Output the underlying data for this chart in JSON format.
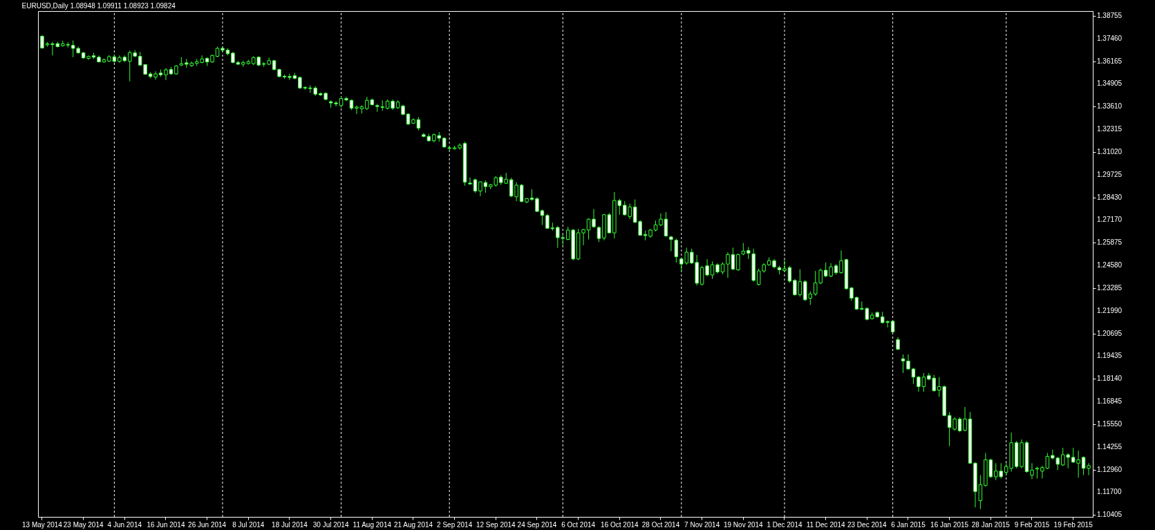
{
  "chart_data": {
    "type": "candlestick",
    "title": "EURUSD,Daily  1.08948 1.09911 1.08923 1.09824",
    "color": "#33ff33",
    "categories": [
      "13 May 2014",
      null,
      null,
      null,
      null,
      null,
      null,
      null,
      "23 May 2014",
      null,
      null,
      null,
      null,
      null,
      null,
      null,
      "4 Jun 2014",
      null,
      null,
      null,
      null,
      null,
      null,
      null,
      "16 Jun 2014",
      null,
      null,
      null,
      null,
      null,
      null,
      null,
      "26 Jun 2014",
      null,
      null,
      null,
      null,
      null,
      null,
      null,
      "8 Jul 2014",
      null,
      null,
      null,
      null,
      null,
      null,
      null,
      "18 Jul 2014",
      null,
      null,
      null,
      null,
      null,
      null,
      null,
      "30 Jul 2014",
      null,
      null,
      null,
      null,
      null,
      null,
      null,
      "11 Aug 2014",
      null,
      null,
      null,
      null,
      null,
      null,
      null,
      "21 Aug 2014",
      null,
      null,
      null,
      null,
      null,
      null,
      null,
      "2 Sep 2014",
      null,
      null,
      null,
      null,
      null,
      null,
      null,
      "12 Sep 2014",
      null,
      null,
      null,
      null,
      null,
      null,
      null,
      "24 Sep 2014",
      null,
      null,
      null,
      null,
      null,
      null,
      null,
      "6 Oct 2014",
      null,
      null,
      null,
      null,
      null,
      null,
      null,
      "16 Oct 2014",
      null,
      null,
      null,
      null,
      null,
      null,
      null,
      "28 Oct 2014",
      null,
      null,
      null,
      null,
      null,
      null,
      null,
      "7 Nov 2014",
      null,
      null,
      null,
      null,
      null,
      null,
      null,
      "19 Nov 2014",
      null,
      null,
      null,
      null,
      null,
      null,
      null,
      "1 Dec 2014",
      null,
      null,
      null,
      null,
      null,
      null,
      null,
      "11 Dec 2014",
      null,
      null,
      null,
      null,
      null,
      null,
      null,
      "23 Dec 2014",
      null,
      null,
      null,
      null,
      null,
      null,
      null,
      "6 Jan 2015",
      null,
      null,
      null,
      null,
      null,
      null,
      null,
      "16 Jan 2015",
      null,
      null,
      null,
      null,
      null,
      null,
      null,
      "28 Jan 2015",
      null,
      null,
      null,
      null,
      null,
      null,
      null,
      "9 Feb 2015",
      null,
      null,
      null,
      null,
      null,
      null,
      null,
      "19 Feb 2015",
      null,
      null,
      null
    ],
    "ohlc": [
      [
        1.3759,
        1.3765,
        1.3688,
        1.3692
      ],
      [
        1.371,
        1.3726,
        1.37,
        1.3716
      ],
      [
        1.3716,
        1.3726,
        1.365,
        1.3712
      ],
      [
        1.3717,
        1.3727,
        1.3695,
        1.37
      ],
      [
        1.3705,
        1.3734,
        1.37,
        1.3716
      ],
      [
        1.3712,
        1.3725,
        1.3695,
        1.3709
      ],
      [
        1.3707,
        1.3735,
        1.364,
        1.369
      ],
      [
        1.369,
        1.37,
        1.366,
        1.3665
      ],
      [
        1.3665,
        1.367,
        1.363,
        1.3636
      ],
      [
        1.3633,
        1.365,
        1.3625,
        1.3644
      ],
      [
        1.3648,
        1.3665,
        1.363,
        1.364
      ],
      [
        1.364,
        1.365,
        1.361,
        1.3613
      ],
      [
        1.3613,
        1.3633,
        1.3608,
        1.3625
      ],
      [
        1.3618,
        1.3652,
        1.3613,
        1.3643
      ],
      [
        1.3642,
        1.3655,
        1.361,
        1.3616
      ],
      [
        1.3616,
        1.365,
        1.3608,
        1.3638
      ],
      [
        1.364,
        1.365,
        1.3612,
        1.362
      ],
      [
        1.3617,
        1.3677,
        1.3503,
        1.3666
      ],
      [
        1.3665,
        1.368,
        1.364,
        1.3646
      ],
      [
        1.3645,
        1.367,
        1.3592,
        1.3595
      ],
      [
        1.3598,
        1.36,
        1.354,
        1.3543
      ],
      [
        1.3545,
        1.3555,
        1.352,
        1.353
      ],
      [
        1.3527,
        1.356,
        1.3512,
        1.3545
      ],
      [
        1.355,
        1.357,
        1.353,
        1.354
      ],
      [
        1.354,
        1.3578,
        1.351,
        1.3568
      ],
      [
        1.357,
        1.3585,
        1.354,
        1.3545
      ],
      [
        1.3545,
        1.3595,
        1.354,
        1.359
      ],
      [
        1.3595,
        1.364,
        1.359,
        1.3603
      ],
      [
        1.3608,
        1.363,
        1.358,
        1.36
      ],
      [
        1.3592,
        1.3615,
        1.3585,
        1.3606
      ],
      [
        1.3605,
        1.363,
        1.359,
        1.3615
      ],
      [
        1.361,
        1.365,
        1.3605,
        1.363
      ],
      [
        1.3633,
        1.364,
        1.359,
        1.3613
      ],
      [
        1.3613,
        1.3655,
        1.3608,
        1.365
      ],
      [
        1.3645,
        1.37,
        1.364,
        1.369
      ],
      [
        1.369,
        1.37,
        1.367,
        1.368
      ],
      [
        1.368,
        1.369,
        1.365,
        1.366
      ],
      [
        1.3663,
        1.367,
        1.3605,
        1.361
      ],
      [
        1.361,
        1.362,
        1.3595,
        1.36
      ],
      [
        1.36,
        1.362,
        1.3585,
        1.361
      ],
      [
        1.3604,
        1.3625,
        1.3598,
        1.3615
      ],
      [
        1.3603,
        1.3645,
        1.3595,
        1.3638
      ],
      [
        1.364,
        1.3645,
        1.359,
        1.3595
      ],
      [
        1.3603,
        1.3612,
        1.3585,
        1.36
      ],
      [
        1.36,
        1.3638,
        1.3595,
        1.362
      ],
      [
        1.362,
        1.3625,
        1.3565,
        1.357
      ],
      [
        1.357,
        1.3575,
        1.3525,
        1.353
      ],
      [
        1.3532,
        1.354,
        1.3518,
        1.3528
      ],
      [
        1.353,
        1.3545,
        1.351,
        1.3525
      ],
      [
        1.3535,
        1.355,
        1.3515,
        1.352
      ],
      [
        1.3525,
        1.353,
        1.346,
        1.3465
      ],
      [
        1.3468,
        1.3475,
        1.3455,
        1.3464
      ],
      [
        1.3465,
        1.348,
        1.3438,
        1.3462
      ],
      [
        1.3465,
        1.3475,
        1.342,
        1.343
      ],
      [
        1.3433,
        1.344,
        1.342,
        1.3426
      ],
      [
        1.3435,
        1.344,
        1.3395,
        1.34
      ],
      [
        1.3387,
        1.3395,
        1.3353,
        1.338
      ],
      [
        1.338,
        1.339,
        1.336,
        1.3375
      ],
      [
        1.3365,
        1.3415,
        1.3353,
        1.3405
      ],
      [
        1.3405,
        1.3415,
        1.339,
        1.3397
      ],
      [
        1.3395,
        1.34,
        1.334,
        1.335
      ],
      [
        1.335,
        1.3365,
        1.3317,
        1.3357
      ],
      [
        1.3347,
        1.3367,
        1.332,
        1.3358
      ],
      [
        1.3348,
        1.3415,
        1.334,
        1.3395
      ],
      [
        1.3398,
        1.3405,
        1.3365,
        1.337
      ],
      [
        1.3365,
        1.3375,
        1.333,
        1.336
      ],
      [
        1.3358,
        1.3395,
        1.3335,
        1.3355
      ],
      [
        1.335,
        1.34,
        1.3343,
        1.339
      ],
      [
        1.339,
        1.34,
        1.334,
        1.335
      ],
      [
        1.3353,
        1.3395,
        1.3345,
        1.3385
      ],
      [
        1.3363,
        1.337,
        1.331,
        1.3315
      ],
      [
        1.3317,
        1.332,
        1.3255,
        1.326
      ],
      [
        1.3265,
        1.3293,
        1.326,
        1.3285
      ],
      [
        1.3285,
        1.33,
        1.3225,
        1.3237
      ],
      [
        1.32,
        1.321,
        1.3185,
        1.319
      ],
      [
        1.319,
        1.3205,
        1.316,
        1.3165
      ],
      [
        1.3165,
        1.3207,
        1.3157,
        1.32
      ],
      [
        1.3195,
        1.3215,
        1.316,
        1.318
      ],
      [
        1.318,
        1.3185,
        1.3125,
        1.313
      ],
      [
        1.3125,
        1.3135,
        1.311,
        1.3122
      ],
      [
        1.312,
        1.3137,
        1.3115,
        1.3125
      ],
      [
        1.3125,
        1.315,
        1.3115,
        1.314
      ],
      [
        1.315,
        1.316,
        1.291,
        1.293
      ],
      [
        1.2925,
        1.2957,
        1.2915,
        1.292
      ],
      [
        1.2944,
        1.295,
        1.287,
        1.288
      ],
      [
        1.288,
        1.2935,
        1.2851,
        1.2932
      ],
      [
        1.2928,
        1.294,
        1.287,
        1.2905
      ],
      [
        1.2905,
        1.292,
        1.289,
        1.2915
      ],
      [
        1.2913,
        1.2965,
        1.2905,
        1.2955
      ],
      [
        1.2959,
        1.297,
        1.2915,
        1.2928
      ],
      [
        1.2924,
        1.2983,
        1.292,
        1.2947
      ],
      [
        1.2944,
        1.2955,
        1.2845,
        1.2851
      ],
      [
        1.2847,
        1.293,
        1.2822,
        1.2913
      ],
      [
        1.2913,
        1.292,
        1.2815,
        1.282
      ],
      [
        1.2818,
        1.284,
        1.281,
        1.2837
      ],
      [
        1.284,
        1.289,
        1.2825,
        1.2832
      ],
      [
        1.2836,
        1.2845,
        1.276,
        1.2764
      ],
      [
        1.2768,
        1.2775,
        1.2687,
        1.2741
      ],
      [
        1.2741,
        1.275,
        1.2665,
        1.2668
      ],
      [
        1.267,
        1.27,
        1.2655,
        1.2666
      ],
      [
        1.2673,
        1.268,
        1.2557,
        1.2615
      ],
      [
        1.2615,
        1.2635,
        1.2573,
        1.2611
      ],
      [
        1.2605,
        1.2677,
        1.26,
        1.2658
      ],
      [
        1.2658,
        1.2665,
        1.2485,
        1.2494
      ],
      [
        1.2494,
        1.2665,
        1.2488,
        1.2642
      ],
      [
        1.2642,
        1.2665,
        1.2572,
        1.2661
      ],
      [
        1.2658,
        1.2725,
        1.2605,
        1.272
      ],
      [
        1.272,
        1.2778,
        1.267,
        1.2677
      ],
      [
        1.2673,
        1.268,
        1.259,
        1.261
      ],
      [
        1.2613,
        1.275,
        1.26,
        1.2745
      ],
      [
        1.2745,
        1.2755,
        1.264,
        1.2642
      ],
      [
        1.2642,
        1.2874,
        1.2611,
        1.2826
      ],
      [
        1.2826,
        1.2835,
        1.2745,
        1.2797
      ],
      [
        1.2799,
        1.2822,
        1.274,
        1.2745
      ],
      [
        1.2735,
        1.2808,
        1.272,
        1.2789
      ],
      [
        1.2789,
        1.2832,
        1.27,
        1.2702
      ],
      [
        1.2706,
        1.2715,
        1.2625,
        1.2629
      ],
      [
        1.2633,
        1.2655,
        1.26,
        1.2627
      ],
      [
        1.2623,
        1.2665,
        1.2615,
        1.2658
      ],
      [
        1.2658,
        1.2712,
        1.265,
        1.2687
      ],
      [
        1.2687,
        1.2753,
        1.268,
        1.272
      ],
      [
        1.272,
        1.276,
        1.262,
        1.2625
      ],
      [
        1.2619,
        1.2625,
        1.2538,
        1.2604
      ],
      [
        1.26,
        1.261,
        1.2474,
        1.2507
      ],
      [
        1.2494,
        1.2503,
        1.2426,
        1.2465
      ],
      [
        1.2471,
        1.2558,
        1.2461,
        1.2532
      ],
      [
        1.2532,
        1.2552,
        1.2465,
        1.2471
      ],
      [
        1.2474,
        1.2517,
        1.2343,
        1.2356
      ],
      [
        1.2351,
        1.2455,
        1.2343,
        1.2445
      ],
      [
        1.2455,
        1.2493,
        1.2395,
        1.2403
      ],
      [
        1.2403,
        1.248,
        1.2381,
        1.2461
      ],
      [
        1.2461,
        1.247,
        1.241,
        1.242
      ],
      [
        1.242,
        1.2475,
        1.2407,
        1.2465
      ],
      [
        1.2465,
        1.2532,
        1.2387,
        1.2519
      ],
      [
        1.2519,
        1.2558,
        1.243,
        1.2436
      ],
      [
        1.2432,
        1.2525,
        1.2426,
        1.2519
      ],
      [
        1.2523,
        1.2585,
        1.2515,
        1.2538
      ],
      [
        1.2542,
        1.2561,
        1.2494,
        1.2527
      ],
      [
        1.2523,
        1.2552,
        1.2365,
        1.2372
      ],
      [
        1.2349,
        1.244,
        1.2343,
        1.2426
      ],
      [
        1.2426,
        1.247,
        1.2416,
        1.2461
      ],
      [
        1.2461,
        1.2503,
        1.2455,
        1.2484
      ],
      [
        1.2484,
        1.2494,
        1.244,
        1.2449
      ],
      [
        1.2445,
        1.2455,
        1.2407,
        1.2432
      ],
      [
        1.2428,
        1.2488,
        1.242,
        1.2438
      ],
      [
        1.2445,
        1.2455,
        1.236,
        1.2368
      ],
      [
        1.2372,
        1.238,
        1.2285,
        1.2291
      ],
      [
        1.2291,
        1.2436,
        1.228,
        1.2365
      ],
      [
        1.2365,
        1.2375,
        1.2255,
        1.2262
      ],
      [
        1.2271,
        1.231,
        1.2233,
        1.2295
      ],
      [
        1.2295,
        1.2426,
        1.2285,
        1.2358
      ],
      [
        1.2358,
        1.244,
        1.235,
        1.243
      ],
      [
        1.243,
        1.2474,
        1.239,
        1.2397
      ],
      [
        1.2397,
        1.247,
        1.239,
        1.2449
      ],
      [
        1.2455,
        1.2465,
        1.2405,
        1.2416
      ],
      [
        1.2416,
        1.2542,
        1.241,
        1.2484
      ],
      [
        1.249,
        1.2495,
        1.232,
        1.2325
      ],
      [
        1.2329,
        1.2335,
        1.2256,
        1.2271
      ],
      [
        1.2275,
        1.228,
        1.2205,
        1.2209
      ],
      [
        1.2213,
        1.2252,
        1.2203,
        1.2209
      ],
      [
        1.2213,
        1.222,
        1.2145,
        1.2151
      ],
      [
        1.2155,
        1.219,
        1.215,
        1.2175
      ],
      [
        1.219,
        1.2196,
        1.216,
        1.2165
      ],
      [
        1.2165,
        1.2194,
        1.2128,
        1.2132
      ],
      [
        1.2138,
        1.2145,
        1.2105,
        1.2134
      ],
      [
        1.214,
        1.2145,
        1.2075,
        1.208
      ],
      [
        1.2036,
        1.205,
        1.1977,
        1.1981
      ],
      [
        1.1927,
        1.1952,
        1.1846,
        1.1914
      ],
      [
        1.1914,
        1.1952,
        1.1865,
        1.1869
      ],
      [
        1.1869,
        1.1875,
        1.1784,
        1.1823
      ],
      [
        1.1823,
        1.183,
        1.174,
        1.1769
      ],
      [
        1.1769,
        1.1846,
        1.174,
        1.1823
      ],
      [
        1.1831,
        1.1846,
        1.1805,
        1.1811
      ],
      [
        1.1817,
        1.1836,
        1.174,
        1.1746
      ],
      [
        1.1749,
        1.1823,
        1.1711,
        1.1769
      ],
      [
        1.1769,
        1.1775,
        1.16,
        1.1605
      ],
      [
        1.1605,
        1.1624,
        1.1431,
        1.1537
      ],
      [
        1.1527,
        1.1595,
        1.1518,
        1.1585
      ],
      [
        1.1585,
        1.1595,
        1.151,
        1.1518
      ],
      [
        1.1521,
        1.1653,
        1.1515,
        1.1585
      ],
      [
        1.1585,
        1.1624,
        1.133,
        1.1334
      ],
      [
        1.1334,
        1.134,
        1.1083,
        1.1173
      ],
      [
        1.1121,
        1.1266,
        1.1073,
        1.1212
      ],
      [
        1.1208,
        1.1392,
        1.12,
        1.1353
      ],
      [
        1.1353,
        1.136,
        1.125,
        1.1257
      ],
      [
        1.1257,
        1.1334,
        1.1238,
        1.1289
      ],
      [
        1.1289,
        1.1334,
        1.1247,
        1.1257
      ],
      [
        1.1282,
        1.1334,
        1.1266,
        1.1315
      ],
      [
        1.1305,
        1.1508,
        1.1286,
        1.145
      ],
      [
        1.145,
        1.146,
        1.1305,
        1.1315
      ],
      [
        1.1315,
        1.1469,
        1.1305,
        1.145
      ],
      [
        1.145,
        1.146,
        1.128,
        1.1286
      ],
      [
        1.1266,
        1.1334,
        1.1243,
        1.1295
      ],
      [
        1.1301,
        1.1315,
        1.1247,
        1.1305
      ],
      [
        1.1289,
        1.132,
        1.1247,
        1.1309
      ],
      [
        1.1305,
        1.1392,
        1.13,
        1.1372
      ],
      [
        1.1378,
        1.1411,
        1.1355,
        1.1363
      ],
      [
        1.1363,
        1.137,
        1.1295,
        1.1328
      ],
      [
        1.1324,
        1.1421,
        1.1318,
        1.1382
      ],
      [
        1.1382,
        1.139,
        1.1305,
        1.1367
      ],
      [
        1.1367,
        1.1421,
        1.1335,
        1.134
      ],
      [
        1.1334,
        1.1405,
        1.1251,
        1.1353
      ],
      [
        1.1367,
        1.1372,
        1.1266,
        1.1305
      ],
      [
        1.1305,
        1.1334,
        1.1266,
        1.132
      ]
    ],
    "ylim": [
      1.1029,
      1.3902
    ],
    "yticks": [
      {
        "value": 1.38755,
        "label": "1.38755"
      },
      {
        "value": 1.3746,
        "label": "1.37460"
      },
      {
        "value": 1.36165,
        "label": "1.36165"
      },
      {
        "value": 1.34905,
        "label": "1.34905"
      },
      {
        "value": 1.3361,
        "label": "1.33610"
      },
      {
        "value": 1.32315,
        "label": "1.32315"
      },
      {
        "value": 1.3102,
        "label": "1.31020"
      },
      {
        "value": 1.29725,
        "label": "1.29725"
      },
      {
        "value": 1.2843,
        "label": "1.28430"
      },
      {
        "value": 1.2717,
        "label": "1.27170"
      },
      {
        "value": 1.25875,
        "label": "1.25875"
      },
      {
        "value": 1.2458,
        "label": "1.24580"
      },
      {
        "value": 1.23285,
        "label": "1.23285"
      },
      {
        "value": 1.2199,
        "label": "1.21990"
      },
      {
        "value": 1.20695,
        "label": "1.20695"
      },
      {
        "value": 1.19435,
        "label": "1.19435"
      },
      {
        "value": 1.1814,
        "label": "1.18140"
      },
      {
        "value": 1.16845,
        "label": "1.16845"
      },
      {
        "value": 1.1555,
        "label": "1.15550"
      },
      {
        "value": 1.14255,
        "label": "1.14255"
      },
      {
        "value": 1.1296,
        "label": "1.12960"
      },
      {
        "value": 1.117,
        "label": "1.11700"
      },
      {
        "value": 1.10405,
        "label": "1.10405"
      }
    ],
    "grid": false
  }
}
